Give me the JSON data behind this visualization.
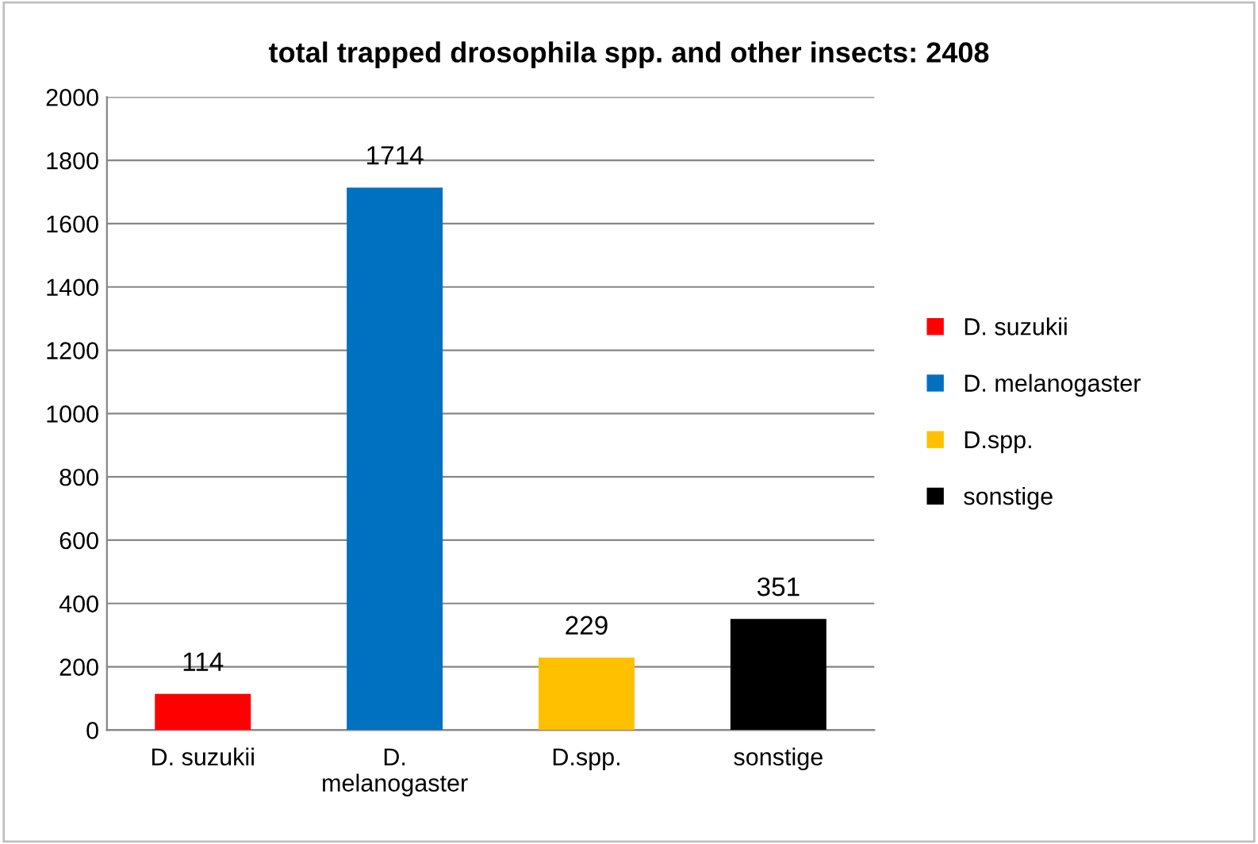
{
  "chart_data": {
    "type": "bar",
    "title": "total trapped drosophila spp. and other insects: 2408",
    "categories": [
      "D. suzukii",
      "D. melanogaster",
      "D.spp.",
      "sonstige"
    ],
    "series": [
      {
        "name": "D. suzukii",
        "color": "#ff0000",
        "values": [
          114,
          null,
          null,
          null
        ]
      },
      {
        "name": "D. melanogaster",
        "color": "#0070c0",
        "values": [
          null,
          1714,
          null,
          null
        ]
      },
      {
        "name": "D.spp.",
        "color": "#ffc000",
        "values": [
          null,
          null,
          229,
          null
        ]
      },
      {
        "name": "sonstige",
        "color": "#000000",
        "values": [
          null,
          null,
          null,
          351
        ]
      }
    ],
    "ylim": [
      0,
      2000
    ],
    "yticks": [
      0,
      200,
      400,
      600,
      800,
      1000,
      1200,
      1400,
      1600,
      1800,
      2000
    ],
    "grid": "y",
    "legend": "right",
    "data_labels": true
  }
}
